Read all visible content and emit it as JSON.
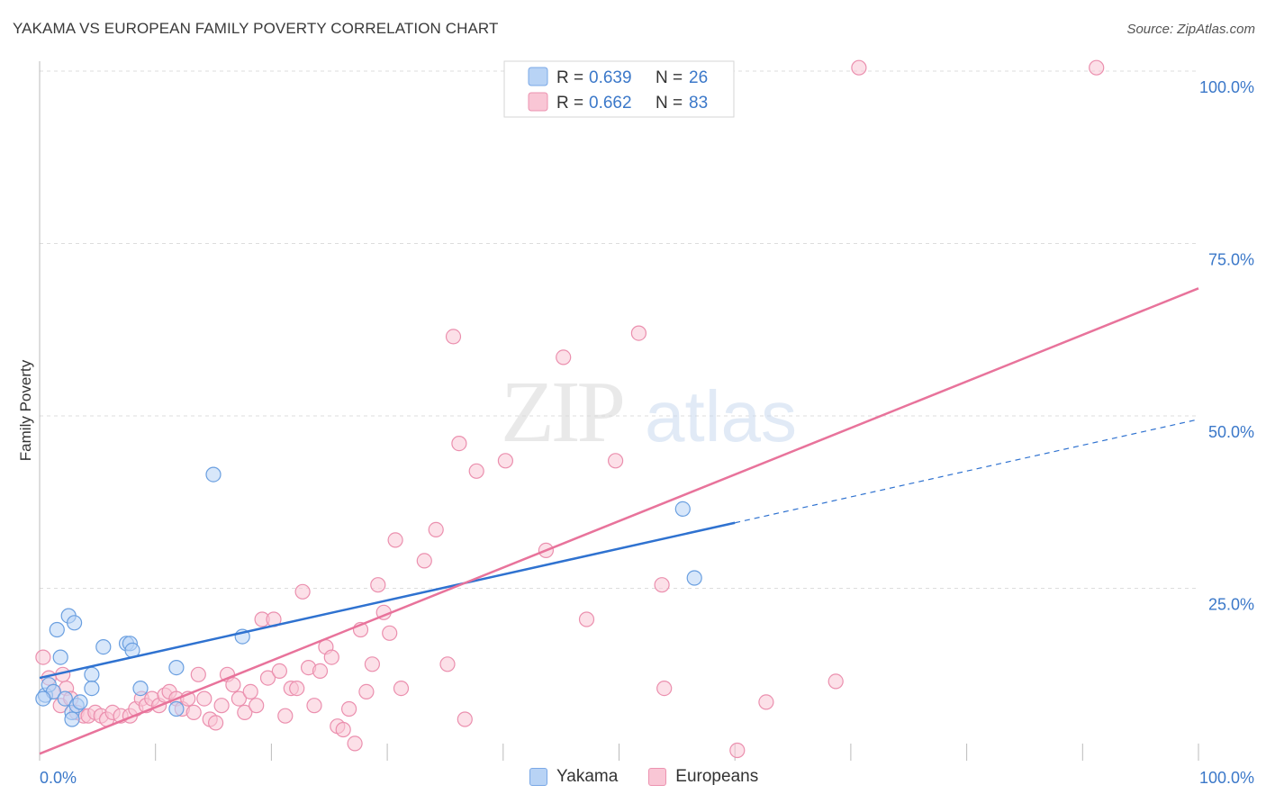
{
  "header": {
    "title": "YAKAMA VS EUROPEAN FAMILY POVERTY CORRELATION CHART",
    "source": "Source: ZipAtlas.com"
  },
  "watermark": {
    "zip": "ZIP",
    "atlas": "atlas"
  },
  "legend": {
    "rows": [
      {
        "r_label": "R = ",
        "r_value": "0.639",
        "n_label": "N = ",
        "n_value": "26"
      },
      {
        "r_label": "R = ",
        "r_value": "0.662",
        "n_label": "N = ",
        "n_value": "83"
      }
    ]
  },
  "bottom_legend": {
    "yakama": "Yakama",
    "europeans": "Europeans"
  },
  "colors": {
    "yakama_fill": "#b8d3f5",
    "yakama_stroke": "#6a9fe0",
    "yakama_line": "#2f72d0",
    "europeans_fill": "#f9c6d5",
    "europeans_stroke": "#eb8fae",
    "europeans_line": "#e8739b",
    "tick_label": "#3b78c9",
    "grid": "#dddddd"
  },
  "chart_data": {
    "type": "scatter",
    "title": "YAKAMA VS EUROPEAN FAMILY POVERTY CORRELATION CHART",
    "xlabel": "",
    "ylabel": "Family Poverty",
    "xlim": [
      0,
      100
    ],
    "ylim": [
      0,
      100
    ],
    "x_tick_labels": [
      "0.0%",
      "100.0%"
    ],
    "y_tick_labels": [
      "25.0%",
      "50.0%",
      "75.0%",
      "100.0%"
    ],
    "y_ticks": [
      25,
      50,
      75,
      100
    ],
    "grid": true,
    "legend_position": "top-center",
    "series": [
      {
        "name": "Yakama",
        "r": 0.639,
        "n": 26,
        "points": [
          [
            0.5,
            9.5
          ],
          [
            0.8,
            11
          ],
          [
            1.2,
            10
          ],
          [
            1.5,
            19
          ],
          [
            1.8,
            15
          ],
          [
            2.2,
            9
          ],
          [
            2.5,
            21
          ],
          [
            2.8,
            7
          ],
          [
            3.0,
            20
          ],
          [
            3.2,
            8
          ],
          [
            3.5,
            8.5
          ],
          [
            4.5,
            12.5
          ],
          [
            4.5,
            10.5
          ],
          [
            5.5,
            16.5
          ],
          [
            7.5,
            17
          ],
          [
            7.8,
            17
          ],
          [
            8.0,
            16
          ],
          [
            8.7,
            10.5
          ],
          [
            11.8,
            13.5
          ],
          [
            11.8,
            7.5
          ],
          [
            15.0,
            41.5
          ],
          [
            17.5,
            18
          ],
          [
            55.5,
            36.5
          ],
          [
            56.5,
            26.5
          ],
          [
            2.8,
            6
          ],
          [
            0.3,
            9
          ]
        ],
        "trend": {
          "x": [
            0,
            60
          ],
          "y": [
            12,
            34.5
          ],
          "dashed_extension": {
            "x": [
              60,
              100
            ],
            "y": [
              34.5,
              49.5
            ]
          }
        }
      },
      {
        "name": "Europeans",
        "r": 0.662,
        "n": 83,
        "points": [
          [
            0.3,
            15
          ],
          [
            0.8,
            12
          ],
          [
            1.2,
            10
          ],
          [
            1.8,
            8
          ],
          [
            2.3,
            10.5
          ],
          [
            2.7,
            9
          ],
          [
            3.2,
            7
          ],
          [
            3.8,
            6.5
          ],
          [
            4.2,
            6.5
          ],
          [
            4.8,
            7
          ],
          [
            5.3,
            6.5
          ],
          [
            5.8,
            6
          ],
          [
            6.3,
            7
          ],
          [
            7.0,
            6.5
          ],
          [
            7.8,
            6.5
          ],
          [
            8.3,
            7.5
          ],
          [
            8.8,
            9
          ],
          [
            9.2,
            8
          ],
          [
            9.7,
            9
          ],
          [
            10.3,
            8
          ],
          [
            10.8,
            9.5
          ],
          [
            11.2,
            10
          ],
          [
            11.8,
            9
          ],
          [
            12.3,
            7.5
          ],
          [
            12.8,
            9
          ],
          [
            13.3,
            7
          ],
          [
            13.7,
            12.5
          ],
          [
            14.2,
            9
          ],
          [
            14.7,
            6
          ],
          [
            15.2,
            5.5
          ],
          [
            15.7,
            8
          ],
          [
            16.2,
            12.5
          ],
          [
            16.7,
            11
          ],
          [
            17.2,
            9
          ],
          [
            17.7,
            7
          ],
          [
            18.2,
            10
          ],
          [
            18.7,
            8
          ],
          [
            19.2,
            20.5
          ],
          [
            19.7,
            12
          ],
          [
            20.2,
            20.5
          ],
          [
            20.7,
            13
          ],
          [
            21.2,
            6.5
          ],
          [
            21.7,
            10.5
          ],
          [
            22.2,
            10.5
          ],
          [
            22.7,
            24.5
          ],
          [
            23.2,
            13.5
          ],
          [
            23.7,
            8
          ],
          [
            24.2,
            13
          ],
          [
            24.7,
            16.5
          ],
          [
            25.2,
            15
          ],
          [
            25.7,
            5
          ],
          [
            26.2,
            4.5
          ],
          [
            26.7,
            7.5
          ],
          [
            27.2,
            2.5
          ],
          [
            27.7,
            19
          ],
          [
            28.2,
            10
          ],
          [
            28.7,
            14
          ],
          [
            29.2,
            25.5
          ],
          [
            29.7,
            21.5
          ],
          [
            30.2,
            18.5
          ],
          [
            30.7,
            32
          ],
          [
            31.2,
            10.5
          ],
          [
            33.2,
            29
          ],
          [
            34.2,
            33.5
          ],
          [
            35.2,
            14
          ],
          [
            35.7,
            61.5
          ],
          [
            36.2,
            46
          ],
          [
            36.7,
            6
          ],
          [
            37.7,
            42
          ],
          [
            40.2,
            43.5
          ],
          [
            43.7,
            30.5
          ],
          [
            45.2,
            58.5
          ],
          [
            47.2,
            20.5
          ],
          [
            49.7,
            43.5
          ],
          [
            51.7,
            62
          ],
          [
            53.7,
            25.5
          ],
          [
            53.9,
            10.5
          ],
          [
            62.7,
            8.5
          ],
          [
            68.7,
            11.5
          ],
          [
            70.7,
            100.5
          ],
          [
            91.2,
            100.5
          ],
          [
            60.2,
            1.5
          ],
          [
            2.0,
            12.5
          ]
        ],
        "trend": {
          "x": [
            0,
            100
          ],
          "y": [
            1,
            68.5
          ]
        }
      }
    ]
  }
}
